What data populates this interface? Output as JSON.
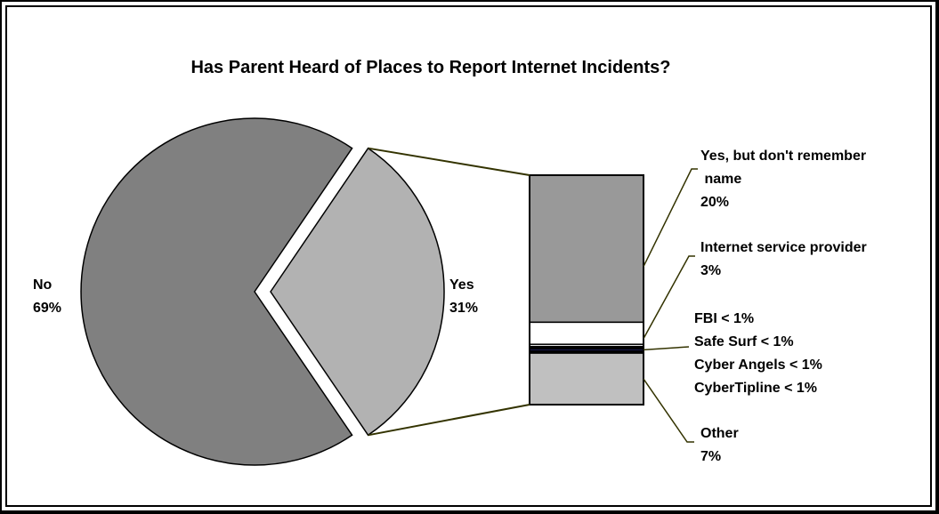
{
  "chart_data": {
    "type": "pie",
    "title": "Has Parent Heard of Places to Report Internet Incidents?",
    "slices": [
      {
        "label": "No",
        "value": 69,
        "value_label": "69%",
        "color": "#808080"
      },
      {
        "label": "Yes",
        "value": 31,
        "value_label": "31%",
        "color": "#b2b2b2"
      }
    ],
    "breakdown_of": "Yes",
    "breakdown": [
      {
        "label": "Yes, but don't remember name",
        "label_lines": [
          "Yes, but don't remember",
          " name"
        ],
        "value": 20,
        "value_label": "20%",
        "color": "#999999"
      },
      {
        "label": "Internet service provider",
        "label_lines": [
          "Internet service provider"
        ],
        "value": 3,
        "value_label": "3%",
        "color": "#ffffff"
      },
      {
        "label": "FBI",
        "value": 0.3,
        "value_label": "< 1%",
        "color": "#ffffff"
      },
      {
        "label": "Safe Surf",
        "value": 0.3,
        "value_label": "< 1%",
        "color": "#000000"
      },
      {
        "label": "Cyber Angels",
        "value": 0.3,
        "value_label": "< 1%",
        "color": "#1f1f5e"
      },
      {
        "label": "CyberTipline",
        "value": 0.3,
        "value_label": "< 1%",
        "color": "#000000"
      },
      {
        "label": "Other",
        "label_lines": [
          "Other"
        ],
        "value": 7,
        "value_label": "7%",
        "color": "#c0c0c0"
      }
    ],
    "small_items_text": [
      "FBI < 1%",
      "Safe Surf < 1%",
      "Cyber Angels < 1%",
      "CyberTipline < 1%"
    ],
    "colors": {
      "leader_line": "#333300",
      "outline": "#000000"
    }
  }
}
